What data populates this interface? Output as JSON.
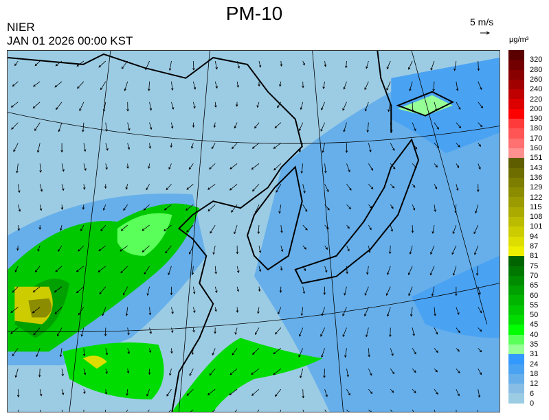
{
  "title": "PM-10",
  "source": "NIER",
  "datetime": "JAN 01 2026 00:00 KST",
  "wind_scale": {
    "label": "5 m/s",
    "icon": "arrow-right-icon"
  },
  "legend": {
    "unit": "µg/m³",
    "labels": [
      "320",
      "280",
      "260",
      "240",
      "220",
      "200",
      "190",
      "180",
      "170",
      "160",
      "151",
      "143",
      "136",
      "129",
      "122",
      "115",
      "108",
      "101",
      "94",
      "87",
      "81",
      "75",
      "70",
      "65",
      "60",
      "55",
      "50",
      "45",
      "40",
      "35",
      "31",
      "24",
      "18",
      "12",
      "6",
      "0"
    ],
    "colors": [
      "#5a0000",
      "#720000",
      "#880000",
      "#a00000",
      "#be0000",
      "#dc0000",
      "#ff0000",
      "#ff3a3a",
      "#ff5555",
      "#ff7070",
      "#ff9090",
      "#5e5e00",
      "#6e6e00",
      "#7d7d00",
      "#8c8c00",
      "#9b9b00",
      "#aaaa00",
      "#bbbb00",
      "#cccc00",
      "#dddd00",
      "#eeee00",
      "#006400",
      "#007800",
      "#008c00",
      "#00a000",
      "#00b400",
      "#00c800",
      "#00dc00",
      "#00ff00",
      "#5aff5a",
      "#96ff96",
      "#3399ff",
      "#4aa2f2",
      "#66afea",
      "#88bde6",
      "#9ccce4"
    ]
  }
}
